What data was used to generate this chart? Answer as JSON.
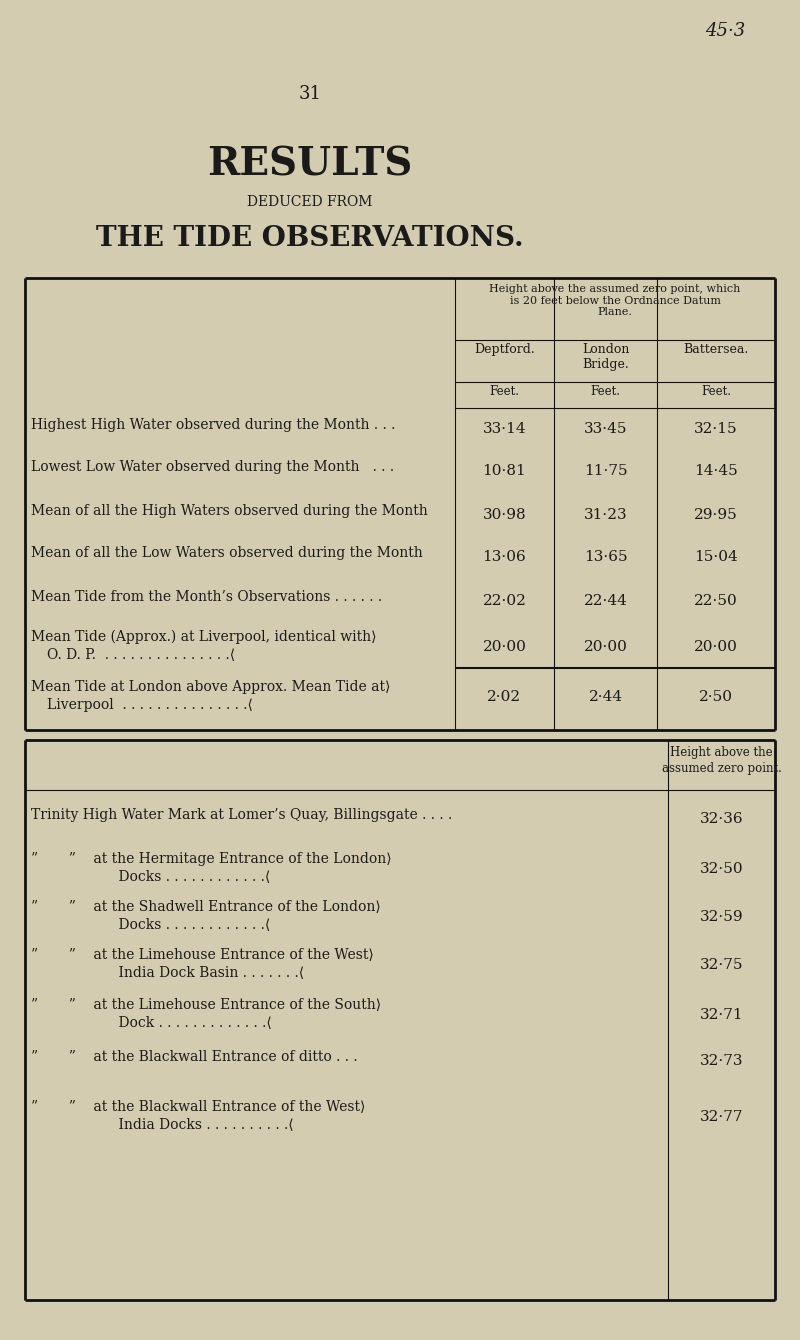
{
  "page_number": "31",
  "page_ref": "45·3",
  "title1": "RESULTS",
  "title2": "DEDUCED FROM",
  "title3": "THE TIDE OBSERVATIONS.",
  "bg_color": "#d4ccb0",
  "text_color": "#1a1a1a",
  "col_headers": [
    "Deptford.",
    "London\nBridge.",
    "Battersea."
  ],
  "t1_rows": [
    {
      "label": "Highest High Water observed during the Month . . .",
      "vals": [
        "33·14",
        "33·45",
        "32·15"
      ],
      "ml": false
    },
    {
      "label": "Lowest Low Water observed during the Month   . . .",
      "vals": [
        "10·81",
        "11·75",
        "14·45"
      ],
      "ml": false
    },
    {
      "label": "Mean of all the High Waters observed during the Month",
      "vals": [
        "30·98",
        "31·23",
        "29·95"
      ],
      "ml": false
    },
    {
      "label": "Mean of all the Low Waters observed during the Month",
      "vals": [
        "13·06",
        "13·65",
        "15·04"
      ],
      "ml": false
    },
    {
      "label": "Mean Tide from the Month’s Observations . . . . . .",
      "vals": [
        "22·02",
        "22·44",
        "22·50"
      ],
      "ml": false
    },
    {
      "label": "Mean Tide (Approx.) at Liverpool, identical with",
      "label2": "O. D. P.  . . . . . . . . . . . . . . .",
      "vals": [
        "20·00",
        "20·00",
        "20·00"
      ],
      "ml": true
    },
    {
      "label": "Mean Tide at London above Approx. Mean Tide at",
      "label2": "Liverpool  . . . . . . . . . . . . . . .",
      "vals": [
        "2·02",
        "2·44",
        "2·50"
      ],
      "ml": true,
      "thick_top": true
    }
  ],
  "t2_rows": [
    {
      "label1": "Trinity High Water Mark at Lomer’s Quay, Billingsgate . . . .",
      "label2": "",
      "val": "32·36",
      "ml": false
    },
    {
      "label1": "”  ”  at the Hermitage Entrance of the London",
      "label2": "      Docks . . . . . . . . . . . .",
      "val": "32·50",
      "ml": true
    },
    {
      "label1": "”  ”  at the Shadwell Entrance of the London",
      "label2": "      Docks . . . . . . . . . . . .",
      "val": "32·59",
      "ml": true
    },
    {
      "label1": "”  ”  at the Limehouse Entrance of the West",
      "label2": "      India Dock Basin . . . . . . .",
      "val": "32·75",
      "ml": true
    },
    {
      "label1": "”  ”  at the Limehouse Entrance of the South",
      "label2": "      Dock . . . . . . . . . . . . .",
      "val": "32·71",
      "ml": true
    },
    {
      "label1": "”  ”  at the Blackwall Entrance of ditto . . .",
      "label2": "",
      "val": "32·73",
      "ml": false
    },
    {
      "label1": "”  ”  at the Blackwall Entrance of the West",
      "label2": "      India Docks . . . . . . . . .",
      "val": "32·77",
      "ml": true
    }
  ]
}
